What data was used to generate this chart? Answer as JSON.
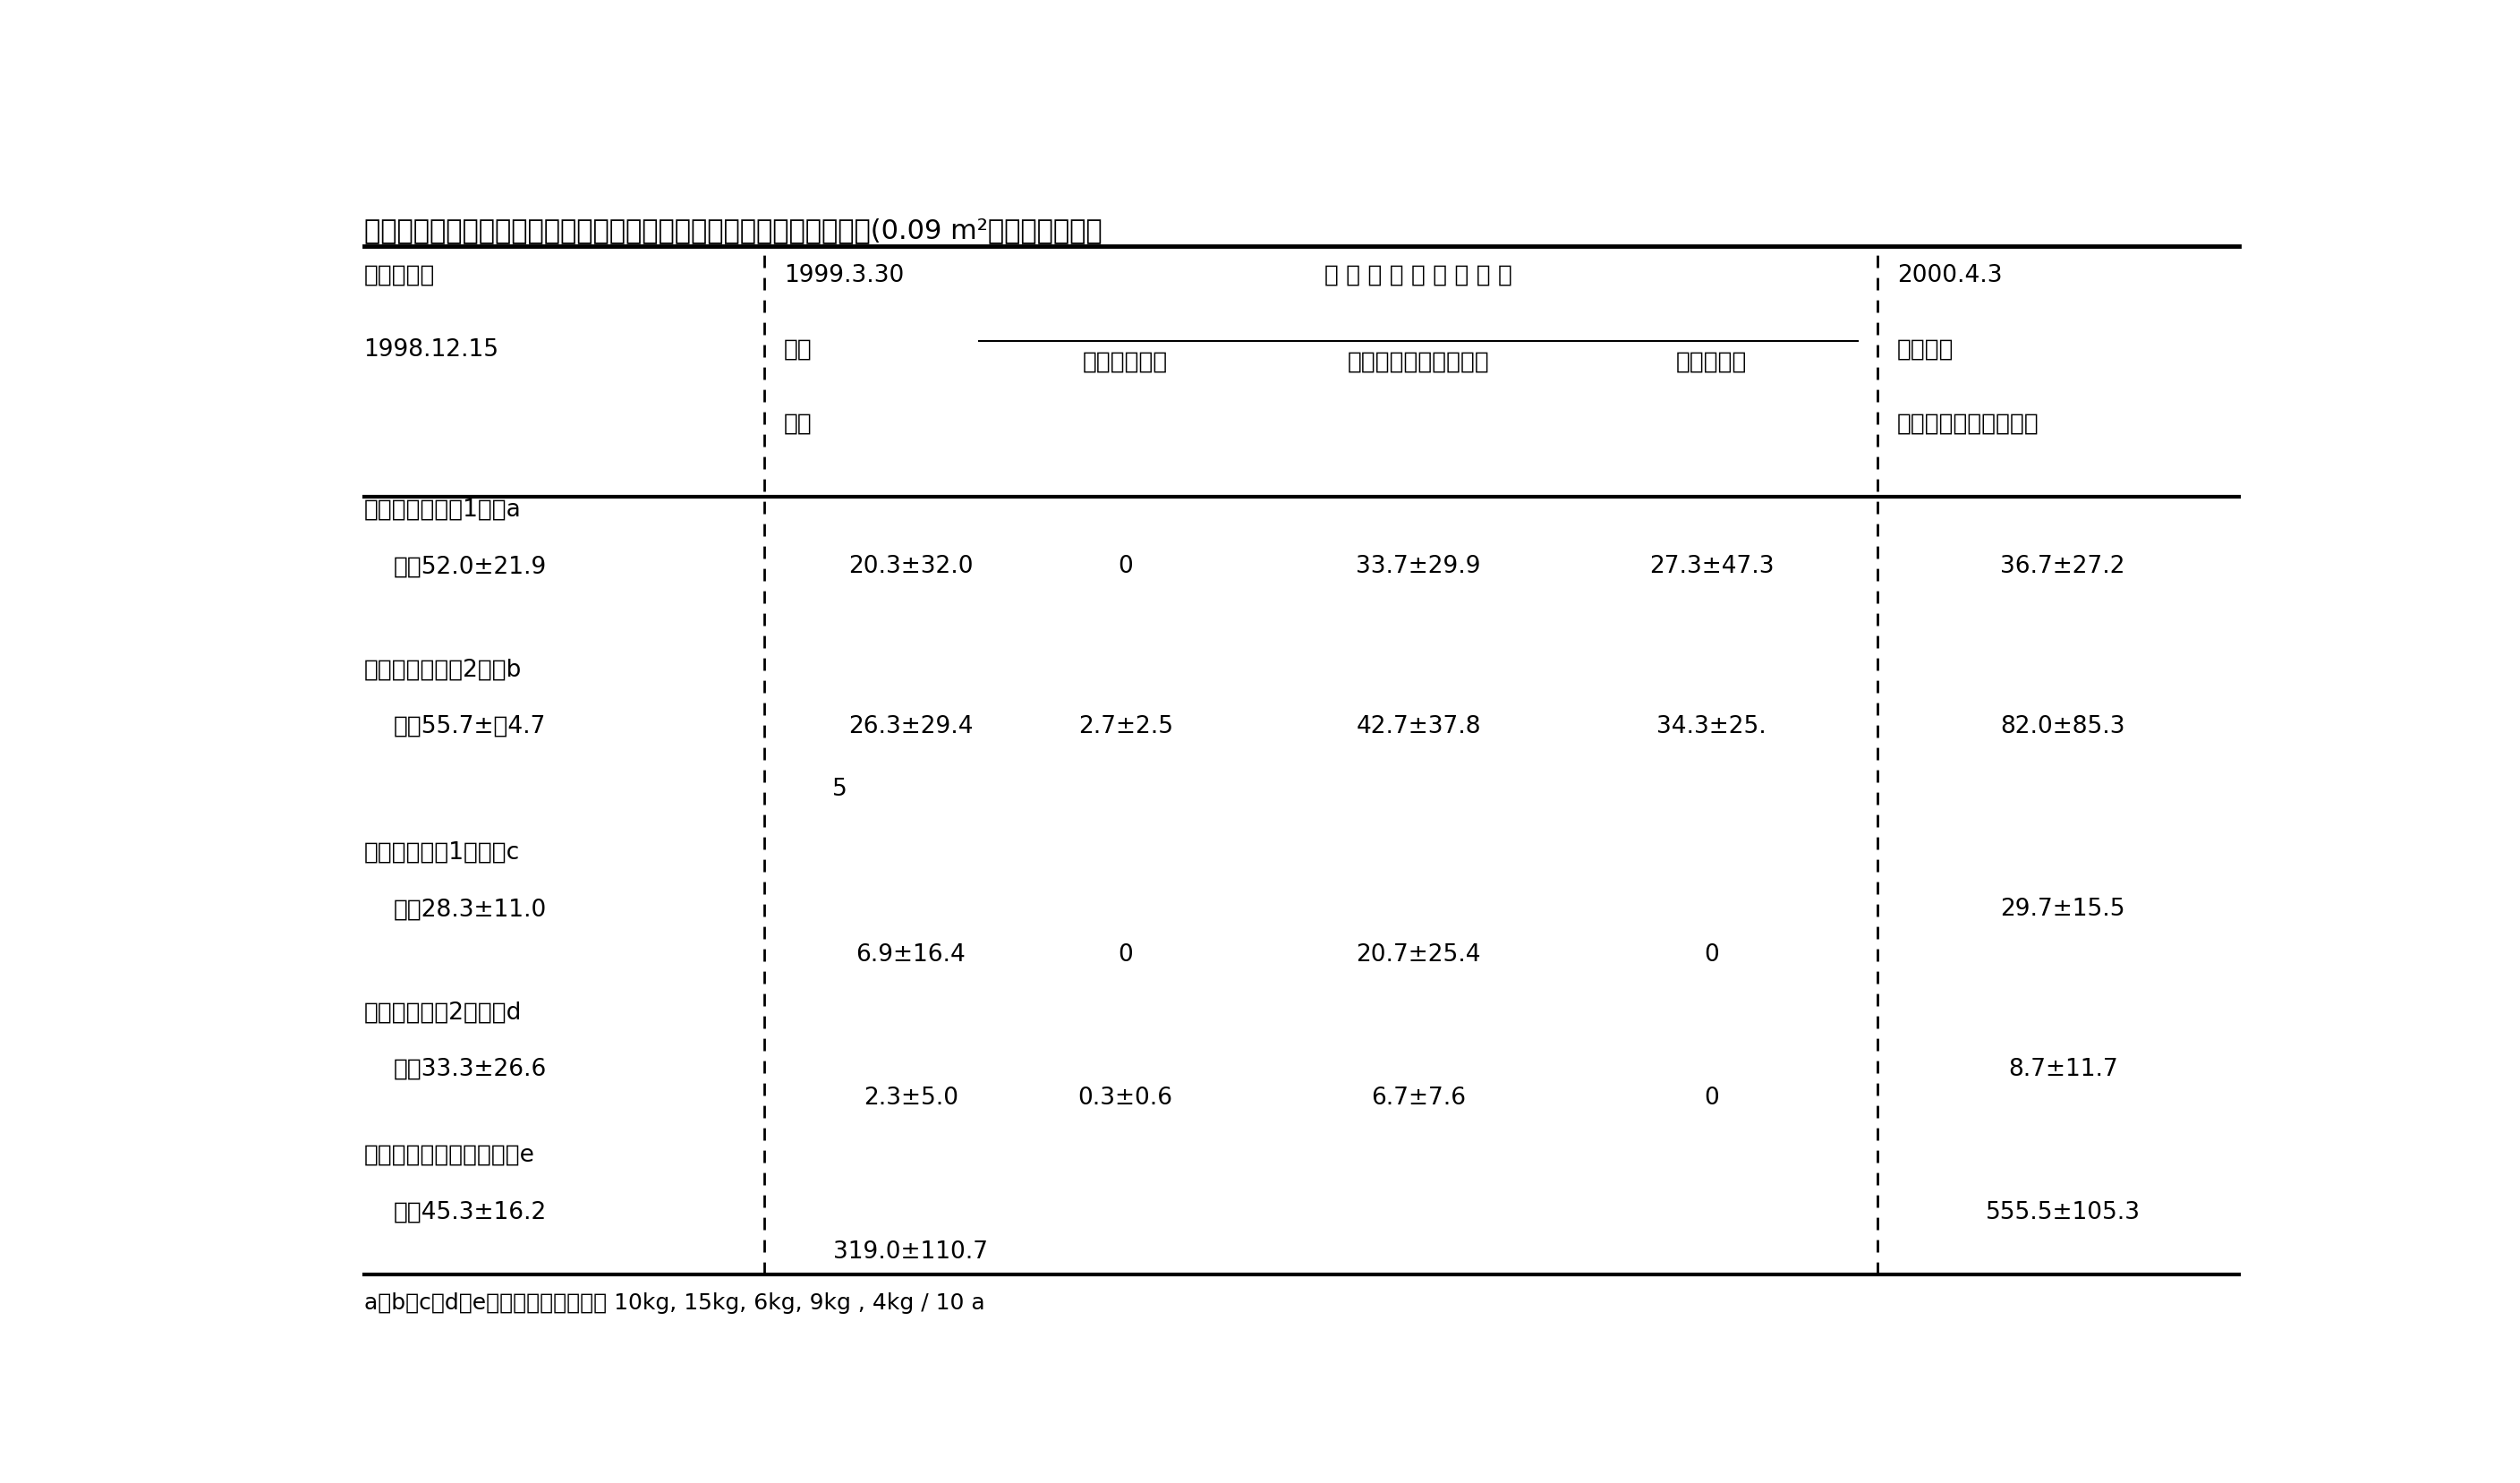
{
  "title": "表１．　エンバクの年内刈りと雑草とがムギダニの発生に及ぼす影響(0.09 m²当たり個体数）",
  "footnote": "a，b，c，d，eの播種量はそれぞれ 10kg, 15kg, 6kg, 9kg , 4kg / 10 a",
  "header_col0_line1": "調査年月日",
  "header_col0_line2": "1998.12.15",
  "header_col1_date": "1999.3.30",
  "header_col1_sub1": "区内",
  "header_col1_sub2": "平均",
  "header_col2_main": "区 内 の 植 物 別 個 体 数",
  "header_col2a": "エンバク枯株",
  "header_col2b": "イタリアンライグラス",
  "header_col2c": "双子葉植物",
  "header_col3_date": "2000.4.3",
  "header_col3_sub1": "圃場全面",
  "header_col3_sub2": "イタリアンライグラス",
  "rows": [
    {
      "label_line1": "極早生エンバク1　　a",
      "label_line2": "　　52.0±21.9",
      "col1": "20.3±32.0",
      "col1_extra": "",
      "col2a": "0",
      "col2b": "33.7±29.9",
      "col2c": "27.3±47.3",
      "col3": "36.7±27.2"
    },
    {
      "label_line1": "極早生エンバク2　　b",
      "label_line2": "　　55.7±　4.7",
      "col1": "26.3±29.4",
      "col1_extra": "5",
      "col2a": "2.7±2.5",
      "col2b": "42.7±37.8",
      "col2c": "34.3±25.",
      "col3": "82.0±85.3"
    },
    {
      "label_line1": "早生エンバク1　　　c",
      "label_line2": "　　28.3±11.0",
      "col1": "6.9±16.4",
      "col1_extra": "",
      "col2a": "0",
      "col2b": "20.7±25.4",
      "col2c": "0",
      "col3": "29.7±15.5"
    },
    {
      "label_line1": "早生エンバク2　　　d",
      "label_line2": "　　33.3±26.6",
      "col1": "2.3±5.0",
      "col1_extra": "",
      "col2a": "0.3±0.6",
      "col2b": "6.7±7.6",
      "col2c": "0",
      "col3": "8.7±11.7"
    },
    {
      "label_line1": "イタリアンライグラス　e",
      "label_line2": "　　45.3±16.2",
      "col1": "319.0±110.7",
      "col1_extra": "",
      "col2a": "",
      "col2b": "",
      "col2c": "",
      "col3": "555.5±105.3"
    }
  ],
  "bg_color": "#ffffff",
  "text_color": "#000000",
  "line_color": "#000000",
  "fs_title": 22,
  "fs_header": 19,
  "fs_body": 19,
  "fs_footnote": 18
}
